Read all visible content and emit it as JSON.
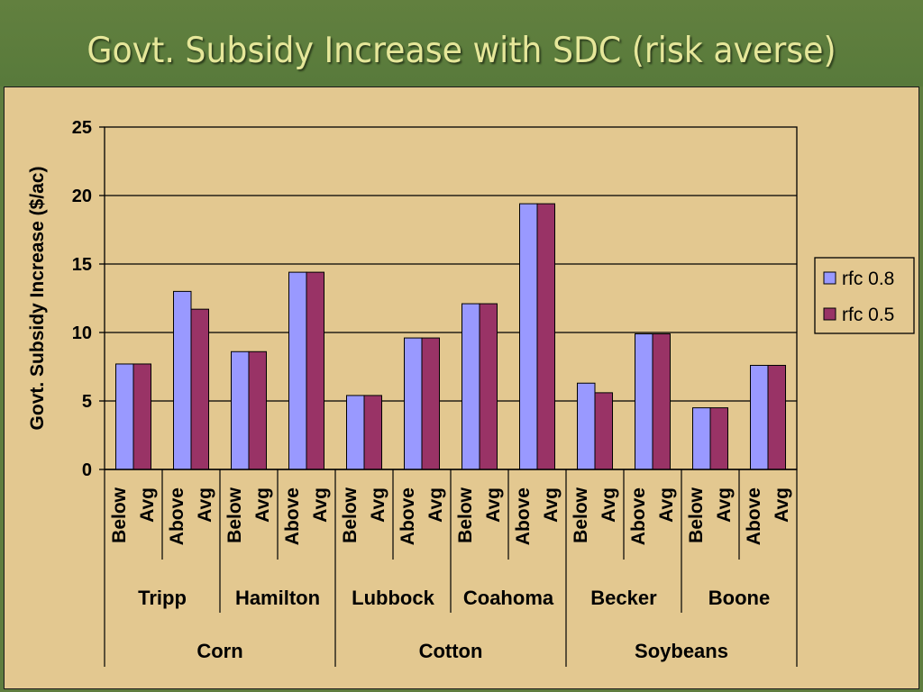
{
  "slide": {
    "title": "Govt. Subsidy Increase with SDC (risk averse)",
    "title_color": "#e6e79a",
    "header_color": "#5f7d3f",
    "panel_color": "#e3c890"
  },
  "chart_data": {
    "type": "bar",
    "title": "",
    "ylabel": "Govt. Subsidy Increase ($/ac)",
    "ylim": [
      0,
      25
    ],
    "yticks": [
      0,
      5,
      10,
      15,
      20,
      25
    ],
    "grid": true,
    "legend_position": "right",
    "categories": [
      {
        "label": [
          "Below",
          "Avg"
        ],
        "location": "Tripp",
        "crop": "Corn"
      },
      {
        "label": [
          "Above",
          "Avg"
        ],
        "location": "Tripp",
        "crop": "Corn"
      },
      {
        "label": [
          "Below",
          "Avg"
        ],
        "location": "Hamilton",
        "crop": "Corn"
      },
      {
        "label": [
          "Above",
          "Avg"
        ],
        "location": "Hamilton",
        "crop": "Corn"
      },
      {
        "label": [
          "Below",
          "Avg"
        ],
        "location": "Lubbock",
        "crop": "Cotton"
      },
      {
        "label": [
          "Above",
          "Avg"
        ],
        "location": "Lubbock",
        "crop": "Cotton"
      },
      {
        "label": [
          "Below",
          "Avg"
        ],
        "location": "Coahoma",
        "crop": "Cotton"
      },
      {
        "label": [
          "Above",
          "Avg"
        ],
        "location": "Coahoma",
        "crop": "Cotton"
      },
      {
        "label": [
          "Below",
          "Avg"
        ],
        "location": "Becker",
        "crop": "Soybeans"
      },
      {
        "label": [
          "Above",
          "Avg"
        ],
        "location": "Becker",
        "crop": "Soybeans"
      },
      {
        "label": [
          "Below",
          "Avg"
        ],
        "location": "Boone",
        "crop": "Soybeans"
      },
      {
        "label": [
          "Above",
          "Avg"
        ],
        "location": "Boone",
        "crop": "Soybeans"
      }
    ],
    "locations": [
      "Tripp",
      "Hamilton",
      "Lubbock",
      "Coahoma",
      "Becker",
      "Boone"
    ],
    "crops": [
      "Corn",
      "Cotton",
      "Soybeans"
    ],
    "series": [
      {
        "name": "rfc 0.8",
        "color": "#9999ff",
        "values": [
          7.7,
          13.0,
          8.6,
          14.4,
          5.4,
          9.6,
          12.1,
          19.4,
          6.3,
          9.9,
          4.5,
          7.6
        ]
      },
      {
        "name": "rfc 0.5",
        "color": "#993366",
        "values": [
          7.7,
          11.7,
          8.6,
          14.4,
          5.4,
          9.6,
          12.1,
          19.4,
          5.6,
          9.9,
          4.5,
          7.6
        ]
      }
    ]
  }
}
